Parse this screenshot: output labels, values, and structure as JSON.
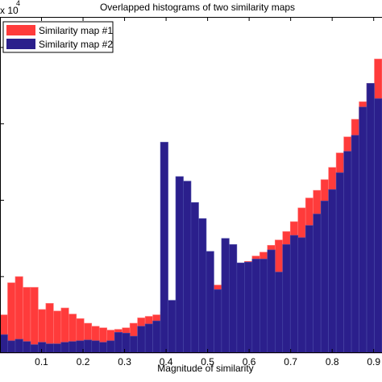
{
  "chart_data": {
    "type": "bar",
    "title": "Overlapped histograms of two similarity maps",
    "xlabel": "Magnitude of similarity",
    "ylabel": "",
    "y_exponent_label": "x 10",
    "y_exponent_power": "4",
    "xlim": [
      0.0,
      0.92
    ],
    "ylim": [
      0,
      4.4
    ],
    "grid": false,
    "legend_position": "top-left",
    "x_ticks": [
      "0.1",
      "0.2",
      "0.3",
      "0.4",
      "0.5",
      "0.6",
      "0.7",
      "0.8",
      "0.9"
    ],
    "bin_width": 0.0184,
    "bin_starts": [
      0.0,
      0.0184,
      0.0368,
      0.0552,
      0.0736,
      0.092,
      0.1104,
      0.1288,
      0.1472,
      0.1656,
      0.184,
      0.2024,
      0.2208,
      0.2392,
      0.2576,
      0.276,
      0.2944,
      0.3128,
      0.3312,
      0.3496,
      0.368,
      0.3864,
      0.4048,
      0.4232,
      0.4416,
      0.46,
      0.4784,
      0.4968,
      0.5152,
      0.5336,
      0.552,
      0.5704,
      0.5888,
      0.6072,
      0.6256,
      0.644,
      0.6624,
      0.6808,
      0.6992,
      0.7176,
      0.736,
      0.7544,
      0.7728,
      0.7912,
      0.8096,
      0.828,
      0.8464,
      0.8648,
      0.8832,
      0.9016
    ],
    "series": [
      {
        "name": "Similarity map #1",
        "color": "#ff3b3b",
        "values": [
          0.5,
          0.92,
          1.0,
          0.86,
          0.86,
          0.57,
          0.65,
          0.55,
          0.59,
          0.51,
          0.45,
          0.39,
          0.35,
          0.33,
          0.3,
          0.31,
          0.33,
          0.39,
          0.46,
          0.48,
          0.5,
          0.54,
          0.56,
          0.58,
          0.6,
          0.68,
          0.72,
          0.79,
          0.89,
          0.95,
          1.04,
          1.1,
          1.2,
          1.27,
          1.32,
          1.41,
          1.48,
          1.59,
          1.72,
          1.9,
          2.03,
          2.13,
          2.27,
          2.43,
          2.62,
          2.83,
          3.06,
          3.29,
          3.53,
          3.85
        ]
      },
      {
        "name": "Similarity map #2",
        "color": "#2b1f8c",
        "values": [
          0.24,
          0.16,
          0.18,
          0.15,
          0.11,
          0.14,
          0.12,
          0.12,
          0.14,
          0.15,
          0.16,
          0.17,
          0.16,
          0.14,
          0.16,
          0.27,
          0.26,
          0.22,
          0.35,
          0.38,
          0.42,
          2.76,
          0.69,
          2.31,
          2.25,
          1.97,
          1.76,
          1.33,
          0.83,
          1.5,
          1.42,
          1.18,
          1.19,
          1.23,
          1.23,
          1.35,
          1.06,
          1.42,
          1.54,
          1.51,
          1.67,
          1.82,
          1.99,
          2.14,
          2.36,
          2.64,
          2.85,
          3.22,
          3.53,
          3.33
        ]
      }
    ]
  }
}
